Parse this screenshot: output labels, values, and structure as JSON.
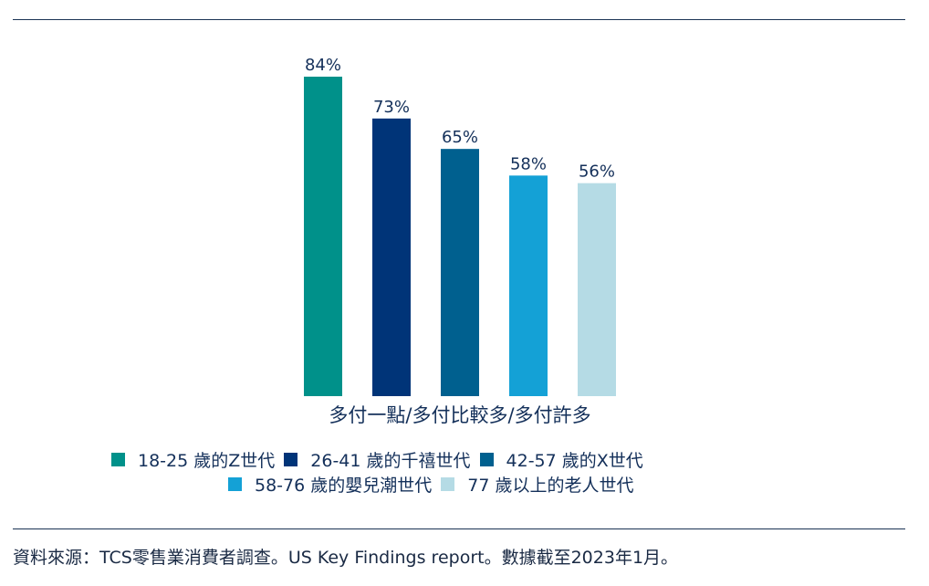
{
  "chart_data": {
    "type": "bar",
    "categories": [
      "多付一點/多付比較多/多付許多"
    ],
    "series": [
      {
        "name": "18-25 歲的Z世代",
        "values": [
          84
        ],
        "label": "84%",
        "color": "#00918a"
      },
      {
        "name": "26-41 歲的千禧世代",
        "values": [
          73
        ],
        "label": "73%",
        "color": "#003478"
      },
      {
        "name": "42-57 歲的X世代",
        "values": [
          65
        ],
        "label": "65%",
        "color": "#00608f"
      },
      {
        "name": "58-76 歲的嬰兒潮世代",
        "values": [
          58
        ],
        "label": "58%",
        "color": "#14a1d6"
      },
      {
        "name": "77 歲以上的老人世代",
        "values": [
          56
        ],
        "label": "56%",
        "color": "#b5dbe5"
      }
    ],
    "ylim": [
      0,
      84
    ],
    "grid": false,
    "legend_position": "bottom"
  },
  "source_note": "資料來源：TCS零售業消費者調查。US Key Findings report。數據截至2023年1月。"
}
